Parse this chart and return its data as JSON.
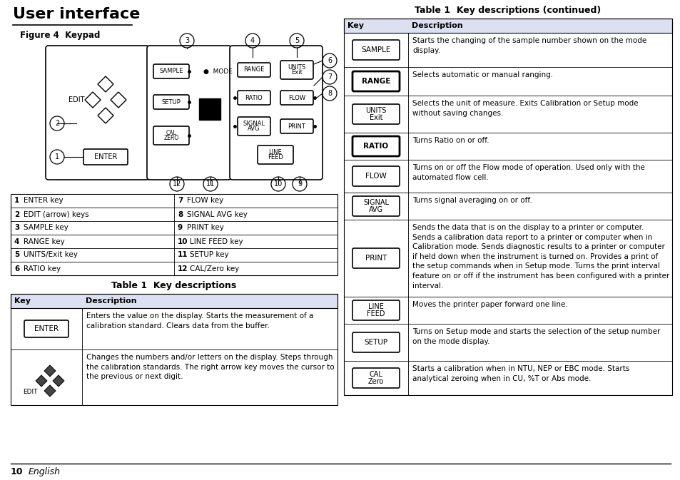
{
  "title": "User interface",
  "figure_label": "Figure 4  Keypad",
  "bg_color": "#ffffff",
  "header_color": "#dde0f0",
  "table1_title": "Table 1  Key descriptions",
  "table2_title": "Table 1  Key descriptions (continued)",
  "numbering_table": {
    "cols": [
      [
        "1  ENTER key",
        "2  EDIT (arrow) keys",
        "3  SAMPLE key",
        "4  RANGE key",
        "5  UNITS/Exit key",
        "6  RATIO key"
      ],
      [
        "7  FLOW key",
        "8  SIGNAL AVG key",
        "9  PRINT key",
        "10  LINE FEED key",
        "11  SETUP key",
        "12  CAL/Zero key"
      ]
    ]
  },
  "table1_rows": [
    {
      "key": "ENTER",
      "desc": "Enters the value on the display. Starts the measurement of a\ncalibration standard. Clears data from the buffer.",
      "type": "button"
    },
    {
      "key": "EDIT",
      "desc": "Changes the numbers and/or letters on the display. Steps through\nthe calibration standards. The right arrow key moves the cursor to\nthe previous or next digit.",
      "type": "arrows"
    }
  ],
  "table2_rows": [
    {
      "key": "SAMPLE",
      "desc": "Starts the changing of the sample number shown on the mode\ndisplay.",
      "type": "button"
    },
    {
      "key": "RANGE",
      "desc": "Selects automatic or manual ranging.",
      "type": "button_bold"
    },
    {
      "key": "UNITS\nExit",
      "desc": "Selects the unit of measure. Exits Calibration or Setup mode\nwithout saving changes.",
      "type": "button"
    },
    {
      "key": "RATIO",
      "desc": "Turns Ratio on or off.",
      "type": "button_bold"
    },
    {
      "key": "FLOW",
      "desc": "Turns on or off the Flow mode of operation. Used only with the\nautomated flow cell.",
      "type": "button"
    },
    {
      "key": "SIGNAL\nAVG",
      "desc": "Turns signal averaging on or off.",
      "type": "button"
    },
    {
      "key": "PRINT",
      "desc": "Sends the data that is on the display to a printer or computer.\nSends a calibration data report to a printer or computer when in\nCalibration mode. Sends diagnostic results to a printer or computer\nif held down when the instrument is turned on. Provides a print of\nthe setup commands when in Setup mode. Turns the print interval\nfeature on or off if the instrument has been configured with a printer\ninterval.",
      "type": "button"
    },
    {
      "key": "LINE\nFEED",
      "desc": "Moves the printer paper forward one line.",
      "type": "button"
    },
    {
      "key": "SETUP",
      "desc": "Turns on Setup mode and starts the selection of the setup number\non the mode display.",
      "type": "button"
    },
    {
      "key": "CAL\nZero",
      "desc": "Starts a calibration when in NTU, NEP or EBC mode. Starts\nanalytical zeroing when in CU, %T or Abs mode.",
      "type": "button"
    }
  ],
  "t2_row_heights": [
    48,
    40,
    52,
    38,
    46,
    38,
    108,
    38,
    52,
    48
  ],
  "footer_num": "10",
  "footer_text": "English"
}
